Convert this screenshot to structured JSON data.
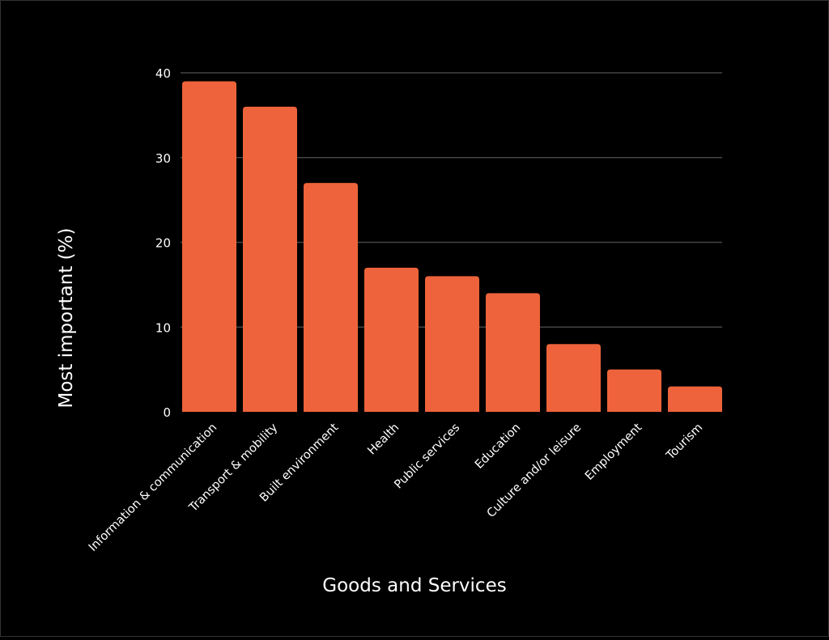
{
  "chart_data": {
    "type": "bar",
    "title": "",
    "xlabel": "Goods and Services",
    "ylabel": "Most important (%)",
    "ylim": [
      0,
      40
    ],
    "yticks": [
      0,
      10,
      20,
      30,
      40
    ],
    "grid": true,
    "categories": [
      "Information & communication",
      "Transport & mobility",
      "Built environment",
      "Health",
      "Public services",
      "Education",
      "Culture and/or leisure",
      "Employment",
      "Tourism"
    ],
    "values": [
      39,
      36,
      27,
      17,
      16,
      14,
      8,
      5,
      3
    ],
    "colors": {
      "bar": "#EE633B",
      "grid": "#444444",
      "background": "#000000",
      "text": "#FFFFFF"
    }
  }
}
